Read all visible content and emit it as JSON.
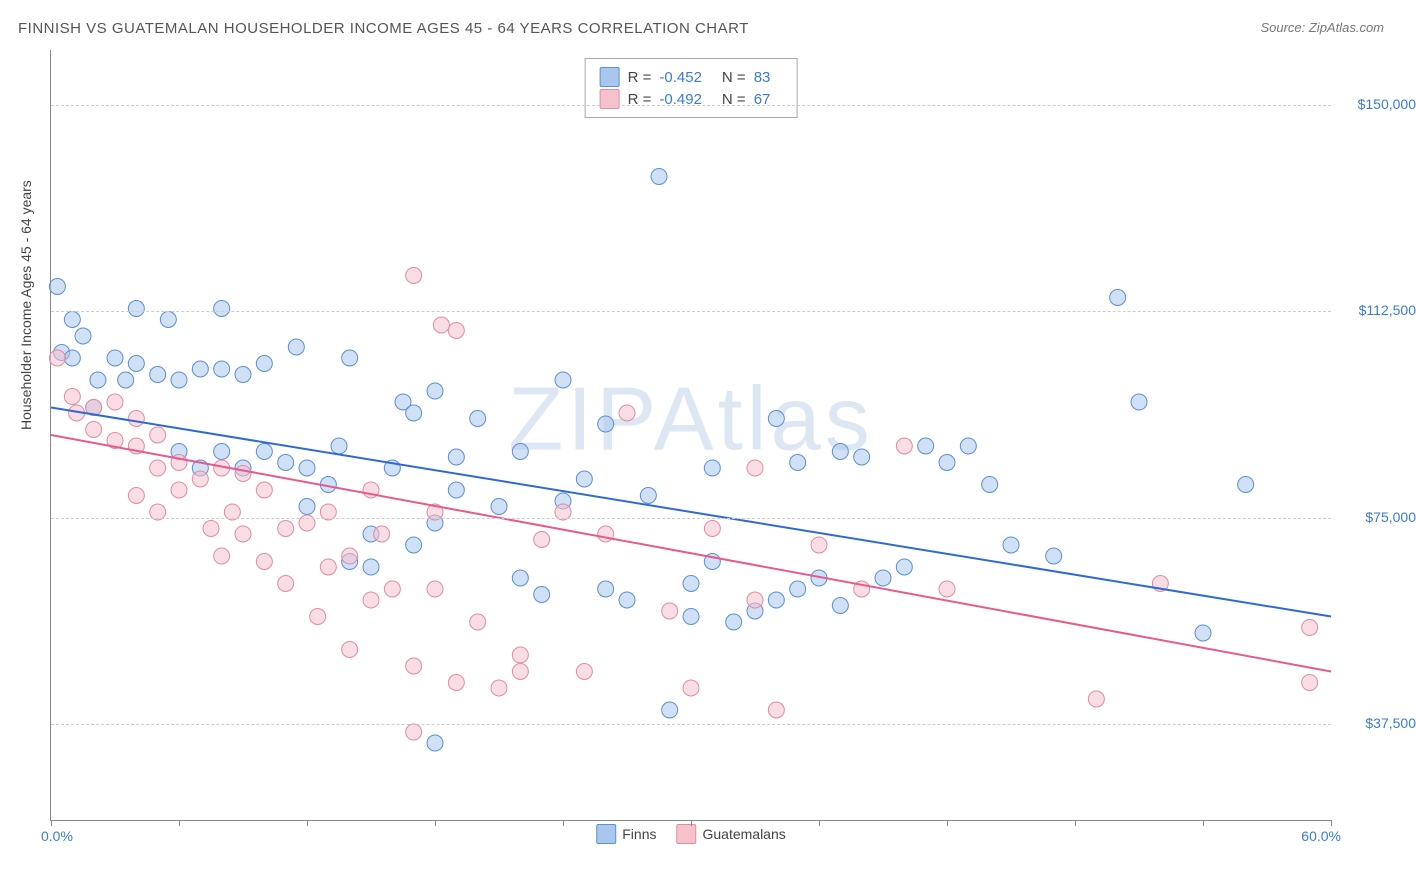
{
  "title": "FINNISH VS GUATEMALAN HOUSEHOLDER INCOME AGES 45 - 64 YEARS CORRELATION CHART",
  "source": "Source: ZipAtlas.com",
  "watermark": "ZIPAtlas",
  "ylabel": "Householder Income Ages 45 - 64 years",
  "chart": {
    "type": "scatter",
    "xlim": [
      0,
      60
    ],
    "ylim": [
      20000,
      160000
    ],
    "x_axis_label_left": "0.0%",
    "x_axis_label_right": "60.0%",
    "y_gridlines": [
      37500,
      75000,
      112500,
      150000
    ],
    "y_tick_labels": [
      "$37,500",
      "$75,000",
      "$112,500",
      "$150,000"
    ],
    "x_ticks": [
      0,
      6,
      12,
      18,
      24,
      30,
      36,
      42,
      48,
      54,
      60
    ],
    "background_color": "#ffffff",
    "grid_color": "#cccccc",
    "axis_color": "#888888",
    "tick_label_color": "#3a7bd5",
    "point_radius": 8,
    "point_opacity": 0.55,
    "line_width": 2,
    "series": [
      {
        "name": "Finns",
        "fill_color": "#a9c7ec",
        "stroke_color": "#5b8fd6",
        "line_color": "#2e6bd1",
        "R": "-0.452",
        "N": "83",
        "regression": {
          "x1": 0,
          "y1": 95000,
          "x2": 60,
          "y2": 57000
        },
        "points": [
          [
            0.3,
            117000
          ],
          [
            0.5,
            105000
          ],
          [
            1,
            111000
          ],
          [
            1,
            104000
          ],
          [
            1.5,
            108000
          ],
          [
            2.2,
            100000
          ],
          [
            2,
            95000
          ],
          [
            3,
            104000
          ],
          [
            3.5,
            100000
          ],
          [
            4,
            103000
          ],
          [
            4,
            113000
          ],
          [
            5,
            101000
          ],
          [
            5.5,
            111000
          ],
          [
            6,
            100000
          ],
          [
            6,
            87000
          ],
          [
            7,
            102000
          ],
          [
            7,
            84000
          ],
          [
            8,
            102000
          ],
          [
            8,
            87000
          ],
          [
            8,
            113000
          ],
          [
            9,
            101000
          ],
          [
            9,
            84000
          ],
          [
            10,
            103000
          ],
          [
            10,
            87000
          ],
          [
            11,
            85000
          ],
          [
            11.5,
            106000
          ],
          [
            12,
            77000
          ],
          [
            12,
            84000
          ],
          [
            13,
            81000
          ],
          [
            13.5,
            88000
          ],
          [
            14,
            67000
          ],
          [
            14,
            104000
          ],
          [
            15,
            72000
          ],
          [
            15,
            66000
          ],
          [
            16,
            84000
          ],
          [
            16.5,
            96000
          ],
          [
            17,
            94000
          ],
          [
            17,
            70000
          ],
          [
            18,
            98000
          ],
          [
            18,
            74000
          ],
          [
            18,
            34000
          ],
          [
            19,
            86000
          ],
          [
            19,
            80000
          ],
          [
            20,
            93000
          ],
          [
            21,
            77000
          ],
          [
            22,
            64000
          ],
          [
            22,
            87000
          ],
          [
            23,
            61000
          ],
          [
            24,
            78000
          ],
          [
            24,
            100000
          ],
          [
            25,
            82000
          ],
          [
            26,
            62000
          ],
          [
            26,
            92000
          ],
          [
            27,
            60000
          ],
          [
            28,
            79000
          ],
          [
            28.5,
            137000
          ],
          [
            29,
            40000
          ],
          [
            30,
            63000
          ],
          [
            30,
            57000
          ],
          [
            31,
            67000
          ],
          [
            31,
            84000
          ],
          [
            32,
            56000
          ],
          [
            33,
            58000
          ],
          [
            34,
            60000
          ],
          [
            34,
            93000
          ],
          [
            35,
            62000
          ],
          [
            35,
            85000
          ],
          [
            36,
            64000
          ],
          [
            37,
            59000
          ],
          [
            37,
            87000
          ],
          [
            38,
            86000
          ],
          [
            39,
            64000
          ],
          [
            40,
            66000
          ],
          [
            41,
            88000
          ],
          [
            42,
            85000
          ],
          [
            43,
            88000
          ],
          [
            44,
            81000
          ],
          [
            45,
            70000
          ],
          [
            47,
            68000
          ],
          [
            50,
            115000
          ],
          [
            51,
            96000
          ],
          [
            54,
            54000
          ],
          [
            56,
            81000
          ]
        ]
      },
      {
        "name": "Guatemalans",
        "fill_color": "#f4c1cd",
        "stroke_color": "#e38ba0",
        "line_color": "#e75a8b",
        "R": "-0.492",
        "N": "67",
        "regression": {
          "x1": 0,
          "y1": 90000,
          "x2": 60,
          "y2": 47000
        },
        "points": [
          [
            0.3,
            104000
          ],
          [
            1,
            97000
          ],
          [
            1.2,
            94000
          ],
          [
            2,
            95000
          ],
          [
            2,
            91000
          ],
          [
            3,
            96000
          ],
          [
            3,
            89000
          ],
          [
            4,
            93000
          ],
          [
            4,
            88000
          ],
          [
            4,
            79000
          ],
          [
            5,
            90000
          ],
          [
            5,
            84000
          ],
          [
            5,
            76000
          ],
          [
            6,
            85000
          ],
          [
            6,
            80000
          ],
          [
            7,
            82000
          ],
          [
            7.5,
            73000
          ],
          [
            8,
            84000
          ],
          [
            8,
            68000
          ],
          [
            8.5,
            76000
          ],
          [
            9,
            72000
          ],
          [
            9,
            83000
          ],
          [
            10,
            67000
          ],
          [
            10,
            80000
          ],
          [
            11,
            73000
          ],
          [
            11,
            63000
          ],
          [
            12,
            74000
          ],
          [
            12.5,
            57000
          ],
          [
            13,
            76000
          ],
          [
            13,
            66000
          ],
          [
            14,
            68000
          ],
          [
            14,
            51000
          ],
          [
            15,
            80000
          ],
          [
            15,
            60000
          ],
          [
            15.5,
            72000
          ],
          [
            16,
            62000
          ],
          [
            17,
            119000
          ],
          [
            17,
            36000
          ],
          [
            17,
            48000
          ],
          [
            18,
            62000
          ],
          [
            18,
            76000
          ],
          [
            18.3,
            110000
          ],
          [
            19,
            45000
          ],
          [
            19,
            109000
          ],
          [
            20,
            56000
          ],
          [
            21,
            44000
          ],
          [
            22,
            50000
          ],
          [
            22,
            47000
          ],
          [
            23,
            71000
          ],
          [
            24,
            76000
          ],
          [
            25,
            47000
          ],
          [
            26,
            72000
          ],
          [
            27,
            94000
          ],
          [
            29,
            58000
          ],
          [
            30,
            44000
          ],
          [
            31,
            73000
          ],
          [
            33,
            84000
          ],
          [
            33,
            60000
          ],
          [
            34,
            40000
          ],
          [
            36,
            70000
          ],
          [
            38,
            62000
          ],
          [
            40,
            88000
          ],
          [
            42,
            62000
          ],
          [
            49,
            42000
          ],
          [
            52,
            63000
          ],
          [
            59,
            55000
          ],
          [
            59,
            45000
          ]
        ]
      }
    ]
  },
  "legend": {
    "items": [
      {
        "label": "Finns",
        "fill": "#a9c7ec",
        "stroke": "#5b8fd6"
      },
      {
        "label": "Guatemalans",
        "fill": "#f4c1cd",
        "stroke": "#e38ba0"
      }
    ]
  }
}
